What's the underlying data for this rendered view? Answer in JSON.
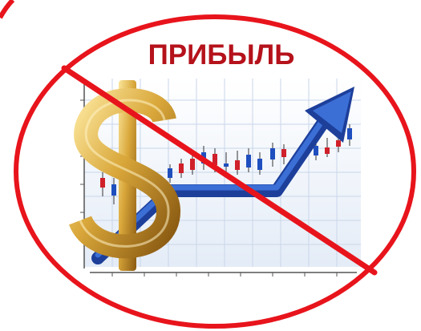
{
  "title": "ПРИБЫЛЬ"
}
